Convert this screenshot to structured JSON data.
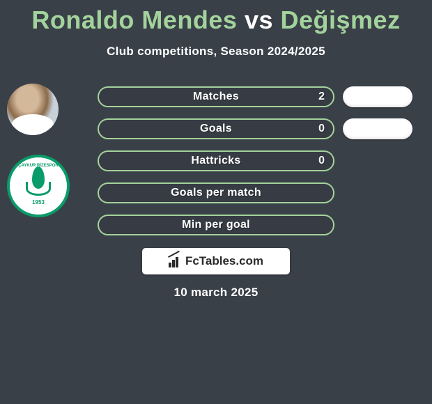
{
  "title": {
    "player1": "Ronaldo Mendes",
    "vs": "vs",
    "player2": "Değişmez",
    "player1_color": "#a3d39c",
    "vs_color": "#ffffff",
    "player2_color": "#a3d39c"
  },
  "subtitle": "Club competitions, Season 2024/2025",
  "player1_color": "#a3d39c",
  "player2_color": "#ffffff",
  "stats": [
    {
      "label": "Matches",
      "value_left": "2",
      "has_right_pill": true
    },
    {
      "label": "Goals",
      "value_left": "0",
      "has_right_pill": true
    },
    {
      "label": "Hattricks",
      "value_left": "0",
      "has_right_pill": false
    },
    {
      "label": "Goals per match",
      "value_left": "",
      "has_right_pill": false
    },
    {
      "label": "Min per goal",
      "value_left": "",
      "has_right_pill": false
    }
  ],
  "stat_row_style": {
    "border_color": "#a3d39c",
    "label_color": "#ffffff",
    "value_color": "#ffffff",
    "font_size": 16
  },
  "pill_style": {
    "background": "#ffffff"
  },
  "branding": {
    "text": "FcTables.com",
    "background": "#ffffff",
    "text_color": "#2a2a2a"
  },
  "date": "10 march 2025",
  "avatar2_year": "1953",
  "background_color": "#3a4048"
}
